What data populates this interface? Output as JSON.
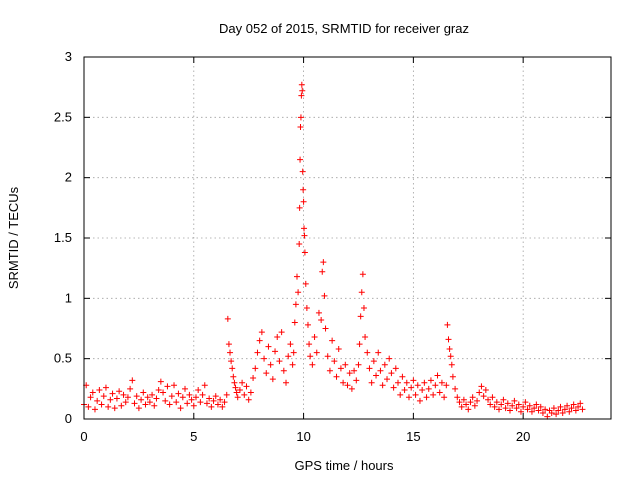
{
  "chart_data": {
    "type": "scatter",
    "title": "Day 052 of 2015, SRMTID for receiver graz",
    "xlabel": "GPS time / hours",
    "ylabel": "SRMTID / TECUs",
    "xlim": [
      0,
      24
    ],
    "ylim": [
      0,
      3
    ],
    "xticks": [
      0,
      5,
      10,
      15,
      20
    ],
    "xtick_labels": [
      "0",
      "5",
      "10",
      "15",
      "20"
    ],
    "yticks": [
      0,
      0.5,
      1,
      1.5,
      2,
      2.5,
      3
    ],
    "ytick_labels": [
      "0",
      "0.5",
      "1",
      "1.5",
      "2",
      "2.5",
      "3"
    ],
    "grid": true,
    "marker": "+",
    "series": [
      {
        "name": "SRMTID",
        "color": "#ff0000",
        "points": [
          [
            0.0,
            0.12
          ],
          [
            0.1,
            0.28
          ],
          [
            0.2,
            0.1
          ],
          [
            0.3,
            0.18
          ],
          [
            0.4,
            0.22
          ],
          [
            0.5,
            0.08
          ],
          [
            0.6,
            0.15
          ],
          [
            0.7,
            0.24
          ],
          [
            0.8,
            0.12
          ],
          [
            0.9,
            0.19
          ],
          [
            1.0,
            0.26
          ],
          [
            1.1,
            0.1
          ],
          [
            1.2,
            0.16
          ],
          [
            1.3,
            0.21
          ],
          [
            1.4,
            0.09
          ],
          [
            1.5,
            0.17
          ],
          [
            1.6,
            0.23
          ],
          [
            1.7,
            0.11
          ],
          [
            1.8,
            0.2
          ],
          [
            1.9,
            0.14
          ],
          [
            2.0,
            0.18
          ],
          [
            2.1,
            0.25
          ],
          [
            2.2,
            0.32
          ],
          [
            2.3,
            0.13
          ],
          [
            2.4,
            0.19
          ],
          [
            2.5,
            0.09
          ],
          [
            2.6,
            0.16
          ],
          [
            2.7,
            0.22
          ],
          [
            2.8,
            0.12
          ],
          [
            2.9,
            0.18
          ],
          [
            3.0,
            0.14
          ],
          [
            3.1,
            0.2
          ],
          [
            3.2,
            0.11
          ],
          [
            3.3,
            0.17
          ],
          [
            3.4,
            0.24
          ],
          [
            3.5,
            0.31
          ],
          [
            3.6,
            0.22
          ],
          [
            3.7,
            0.15
          ],
          [
            3.8,
            0.27
          ],
          [
            3.9,
            0.12
          ],
          [
            4.0,
            0.19
          ],
          [
            4.1,
            0.28
          ],
          [
            4.2,
            0.14
          ],
          [
            4.3,
            0.21
          ],
          [
            4.4,
            0.09
          ],
          [
            4.5,
            0.18
          ],
          [
            4.6,
            0.25
          ],
          [
            4.7,
            0.13
          ],
          [
            4.8,
            0.2
          ],
          [
            4.9,
            0.16
          ],
          [
            5.0,
            0.11
          ],
          [
            5.1,
            0.18
          ],
          [
            5.2,
            0.24
          ],
          [
            5.3,
            0.14
          ],
          [
            5.4,
            0.2
          ],
          [
            5.5,
            0.28
          ],
          [
            5.6,
            0.13
          ],
          [
            5.7,
            0.17
          ],
          [
            5.8,
            0.1
          ],
          [
            5.9,
            0.15
          ],
          [
            6.0,
            0.19
          ],
          [
            6.1,
            0.12
          ],
          [
            6.2,
            0.16
          ],
          [
            6.3,
            0.1
          ],
          [
            6.4,
            0.14
          ],
          [
            6.5,
            0.2
          ],
          [
            6.55,
            0.83
          ],
          [
            6.6,
            0.62
          ],
          [
            6.65,
            0.55
          ],
          [
            6.7,
            0.48
          ],
          [
            6.75,
            0.42
          ],
          [
            6.8,
            0.35
          ],
          [
            6.85,
            0.3
          ],
          [
            6.9,
            0.26
          ],
          [
            6.95,
            0.22
          ],
          [
            7.0,
            0.18
          ],
          [
            7.1,
            0.24
          ],
          [
            7.2,
            0.3
          ],
          [
            7.3,
            0.2
          ],
          [
            7.4,
            0.27
          ],
          [
            7.5,
            0.16
          ],
          [
            7.6,
            0.22
          ],
          [
            7.7,
            0.34
          ],
          [
            7.8,
            0.42
          ],
          [
            7.9,
            0.55
          ],
          [
            8.0,
            0.65
          ],
          [
            8.1,
            0.72
          ],
          [
            8.2,
            0.5
          ],
          [
            8.3,
            0.38
          ],
          [
            8.4,
            0.6
          ],
          [
            8.5,
            0.45
          ],
          [
            8.6,
            0.33
          ],
          [
            8.7,
            0.56
          ],
          [
            8.8,
            0.68
          ],
          [
            8.9,
            0.48
          ],
          [
            9.0,
            0.72
          ],
          [
            9.1,
            0.4
          ],
          [
            9.2,
            0.3
          ],
          [
            9.3,
            0.52
          ],
          [
            9.4,
            0.62
          ],
          [
            9.5,
            0.45
          ],
          [
            9.55,
            0.55
          ],
          [
            9.6,
            0.8
          ],
          [
            9.65,
            0.95
          ],
          [
            9.7,
            1.18
          ],
          [
            9.75,
            1.05
          ],
          [
            9.8,
            1.45
          ],
          [
            9.82,
            1.75
          ],
          [
            9.84,
            2.15
          ],
          [
            9.86,
            2.42
          ],
          [
            9.88,
            2.5
          ],
          [
            9.9,
            2.68
          ],
          [
            9.92,
            2.77
          ],
          [
            9.94,
            2.72
          ],
          [
            9.96,
            2.05
          ],
          [
            9.98,
            1.9
          ],
          [
            10.0,
            1.8
          ],
          [
            10.02,
            1.58
          ],
          [
            10.04,
            1.52
          ],
          [
            10.06,
            1.38
          ],
          [
            10.1,
            1.12
          ],
          [
            10.15,
            0.92
          ],
          [
            10.2,
            0.78
          ],
          [
            10.25,
            0.62
          ],
          [
            10.3,
            0.52
          ],
          [
            10.4,
            0.45
          ],
          [
            10.5,
            0.68
          ],
          [
            10.6,
            0.55
          ],
          [
            10.7,
            0.88
          ],
          [
            10.8,
            0.82
          ],
          [
            10.85,
            1.22
          ],
          [
            10.9,
            1.3
          ],
          [
            10.95,
            1.02
          ],
          [
            11.0,
            0.75
          ],
          [
            11.1,
            0.52
          ],
          [
            11.2,
            0.4
          ],
          [
            11.3,
            0.65
          ],
          [
            11.4,
            0.48
          ],
          [
            11.5,
            0.35
          ],
          [
            11.6,
            0.58
          ],
          [
            11.7,
            0.42
          ],
          [
            11.8,
            0.3
          ],
          [
            11.9,
            0.45
          ],
          [
            12.0,
            0.28
          ],
          [
            12.1,
            0.38
          ],
          [
            12.2,
            0.25
          ],
          [
            12.3,
            0.4
          ],
          [
            12.4,
            0.32
          ],
          [
            12.5,
            0.45
          ],
          [
            12.55,
            0.62
          ],
          [
            12.6,
            0.85
          ],
          [
            12.65,
            1.05
          ],
          [
            12.7,
            1.2
          ],
          [
            12.75,
            0.92
          ],
          [
            12.8,
            0.68
          ],
          [
            12.9,
            0.55
          ],
          [
            13.0,
            0.42
          ],
          [
            13.1,
            0.3
          ],
          [
            13.2,
            0.48
          ],
          [
            13.3,
            0.36
          ],
          [
            13.4,
            0.55
          ],
          [
            13.5,
            0.4
          ],
          [
            13.6,
            0.28
          ],
          [
            13.7,
            0.45
          ],
          [
            13.8,
            0.33
          ],
          [
            13.9,
            0.5
          ],
          [
            14.0,
            0.38
          ],
          [
            14.1,
            0.26
          ],
          [
            14.2,
            0.42
          ],
          [
            14.3,
            0.3
          ],
          [
            14.4,
            0.2
          ],
          [
            14.5,
            0.35
          ],
          [
            14.6,
            0.24
          ],
          [
            14.7,
            0.3
          ],
          [
            14.8,
            0.18
          ],
          [
            14.9,
            0.26
          ],
          [
            15.0,
            0.32
          ],
          [
            15.1,
            0.2
          ],
          [
            15.2,
            0.28
          ],
          [
            15.3,
            0.15
          ],
          [
            15.4,
            0.24
          ],
          [
            15.5,
            0.3
          ],
          [
            15.6,
            0.18
          ],
          [
            15.7,
            0.25
          ],
          [
            15.8,
            0.32
          ],
          [
            15.9,
            0.2
          ],
          [
            16.0,
            0.28
          ],
          [
            16.1,
            0.36
          ],
          [
            16.2,
            0.22
          ],
          [
            16.3,
            0.3
          ],
          [
            16.4,
            0.18
          ],
          [
            16.5,
            0.28
          ],
          [
            16.55,
            0.78
          ],
          [
            16.6,
            0.66
          ],
          [
            16.65,
            0.58
          ],
          [
            16.7,
            0.52
          ],
          [
            16.75,
            0.45
          ],
          [
            16.8,
            0.35
          ],
          [
            16.9,
            0.25
          ],
          [
            17.0,
            0.18
          ],
          [
            17.1,
            0.14
          ],
          [
            17.2,
            0.1
          ],
          [
            17.3,
            0.16
          ],
          [
            17.4,
            0.12
          ],
          [
            17.5,
            0.08
          ],
          [
            17.6,
            0.14
          ],
          [
            17.7,
            0.18
          ],
          [
            17.8,
            0.11
          ],
          [
            17.9,
            0.15
          ],
          [
            18.0,
            0.22
          ],
          [
            18.1,
            0.27
          ],
          [
            18.2,
            0.19
          ],
          [
            18.3,
            0.24
          ],
          [
            18.4,
            0.16
          ],
          [
            18.5,
            0.12
          ],
          [
            18.6,
            0.18
          ],
          [
            18.7,
            0.1
          ],
          [
            18.8,
            0.14
          ],
          [
            18.9,
            0.08
          ],
          [
            19.0,
            0.12
          ],
          [
            19.1,
            0.16
          ],
          [
            19.2,
            0.09
          ],
          [
            19.3,
            0.13
          ],
          [
            19.4,
            0.07
          ],
          [
            19.5,
            0.11
          ],
          [
            19.6,
            0.15
          ],
          [
            19.7,
            0.09
          ],
          [
            19.8,
            0.12
          ],
          [
            19.9,
            0.06
          ],
          [
            20.0,
            0.1
          ],
          [
            20.1,
            0.14
          ],
          [
            20.2,
            0.08
          ],
          [
            20.3,
            0.11
          ],
          [
            20.4,
            0.06
          ],
          [
            20.5,
            0.09
          ],
          [
            20.6,
            0.12
          ],
          [
            20.7,
            0.07
          ],
          [
            20.8,
            0.1
          ],
          [
            20.9,
            0.05
          ],
          [
            21.0,
            0.08
          ],
          [
            21.1,
            0.02
          ],
          [
            21.2,
            0.07
          ],
          [
            21.3,
            0.05
          ],
          [
            21.4,
            0.09
          ],
          [
            21.5,
            0.04
          ],
          [
            21.6,
            0.07
          ],
          [
            21.7,
            0.1
          ],
          [
            21.8,
            0.05
          ],
          [
            21.9,
            0.08
          ],
          [
            22.0,
            0.11
          ],
          [
            22.1,
            0.06
          ],
          [
            22.2,
            0.09
          ],
          [
            22.3,
            0.12
          ],
          [
            22.4,
            0.07
          ],
          [
            22.5,
            0.1
          ],
          [
            22.6,
            0.13
          ],
          [
            22.7,
            0.08
          ]
        ]
      }
    ]
  }
}
